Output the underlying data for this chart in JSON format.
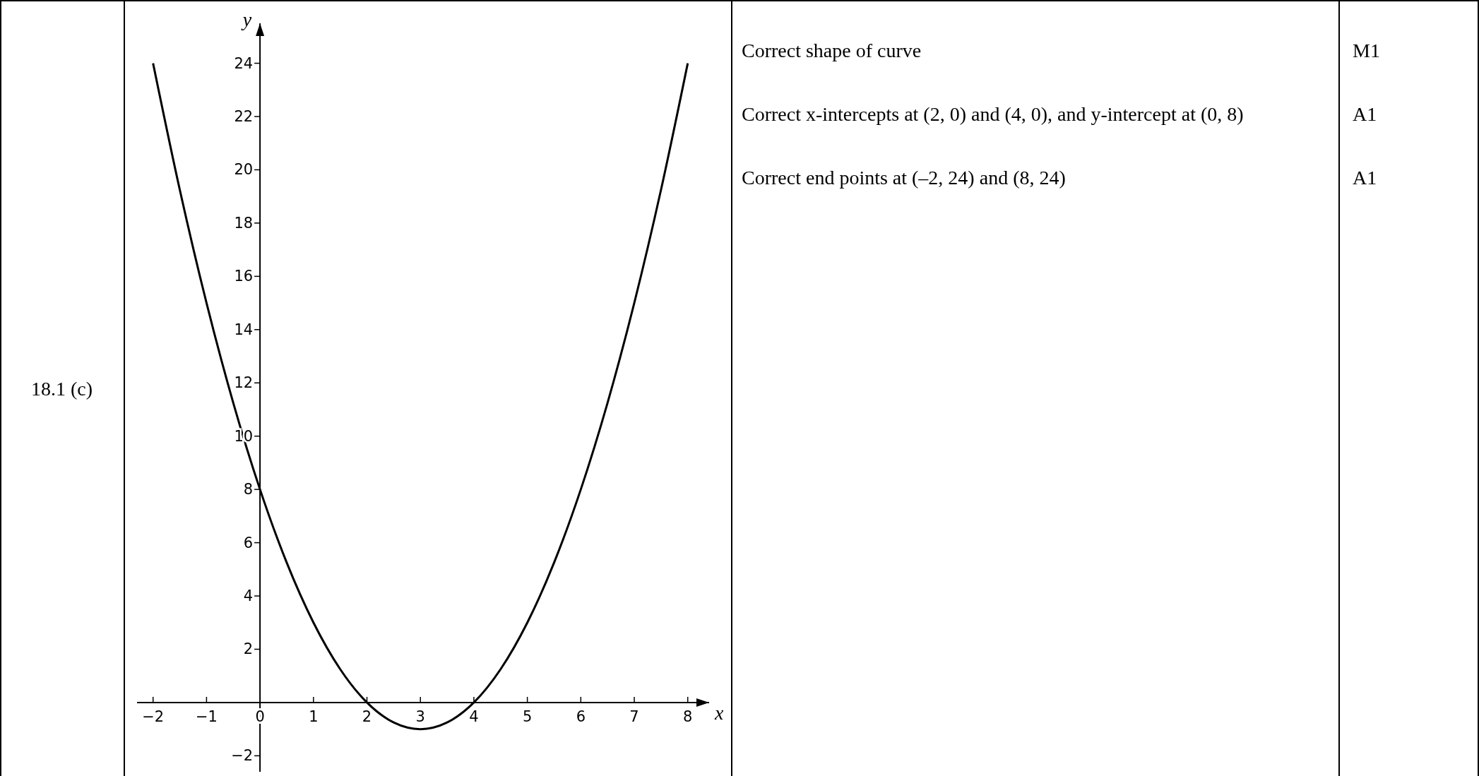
{
  "chart_data": {
    "type": "line",
    "xlabel": "x",
    "ylabel": "y",
    "x": [
      -2,
      -1.5,
      -1,
      -0.5,
      0,
      0.5,
      1,
      1.5,
      2,
      2.5,
      3,
      3.5,
      4,
      4.5,
      5,
      5.5,
      6,
      6.5,
      7,
      7.5,
      8
    ],
    "series": [
      {
        "color": "#000000",
        "values": [
          24,
          19.25,
          15,
          11.25,
          8,
          5.25,
          3,
          1.25,
          0,
          -0.75,
          -1,
          -0.75,
          0,
          1.25,
          3,
          5.25,
          8,
          11.25,
          15,
          19.25,
          24
        ]
      }
    ],
    "xlim": [
      -2.3,
      8.4
    ],
    "xticks": [
      {
        "value": -2,
        "label": "−2"
      },
      {
        "value": -1,
        "label": "−1"
      },
      0,
      1,
      2,
      3,
      4,
      5,
      6,
      7,
      8
    ],
    "ylim": [
      -2.6,
      25.5
    ],
    "yticks": [
      {
        "value": -2,
        "label": "−2"
      },
      2,
      4,
      6,
      8,
      10,
      12,
      14,
      16,
      18,
      20,
      22,
      24
    ],
    "annotations": [
      "18.1 (c)",
      "Correct shape of curve",
      "M1",
      "Correct x-intercepts at (2, 0) and (4, 0), and y-intercept at (0, 8)",
      "A1",
      "Correct end points at (–2, 24) and (8, 24)",
      "A1"
    ]
  }
}
